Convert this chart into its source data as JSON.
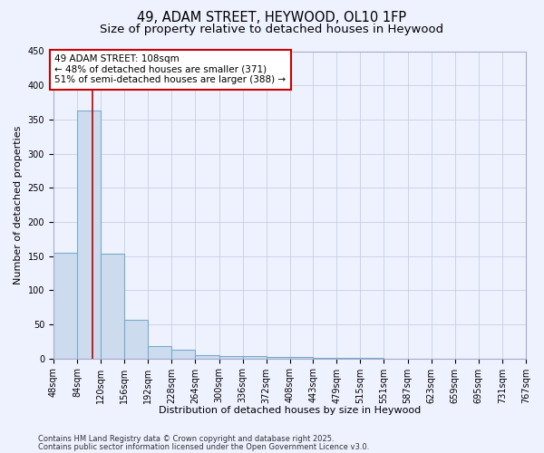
{
  "title": "49, ADAM STREET, HEYWOOD, OL10 1FP",
  "subtitle": "Size of property relative to detached houses in Heywood",
  "xlabel": "Distribution of detached houses by size in Heywood",
  "ylabel": "Number of detached properties",
  "bin_edges": [
    48,
    84,
    120,
    156,
    192,
    228,
    264,
    300,
    336,
    372,
    408,
    443,
    479,
    515,
    551,
    587,
    623,
    659,
    695,
    731,
    767
  ],
  "bar_heights": [
    155,
    363,
    153,
    57,
    18,
    13,
    5,
    4,
    3,
    2,
    2,
    1,
    1,
    1,
    0,
    0,
    0,
    0,
    0,
    0
  ],
  "bar_color": "#ccdcee",
  "bar_edge_color": "#7aaacc",
  "vline_x": 108,
  "vline_color": "#bb0000",
  "annotation_line1": "49 ADAM STREET: 108sqm",
  "annotation_line2": "← 48% of detached houses are smaller (371)",
  "annotation_line3": "51% of semi-detached houses are larger (388) →",
  "annotation_box_color": "#cc0000",
  "annotation_bg_color": "white",
  "ylim": [
    0,
    450
  ],
  "yticks": [
    0,
    50,
    100,
    150,
    200,
    250,
    300,
    350,
    400,
    450
  ],
  "background_color": "#eef2ff",
  "grid_color": "#c8cfe0",
  "footer_line1": "Contains HM Land Registry data © Crown copyright and database right 2025.",
  "footer_line2": "Contains public sector information licensed under the Open Government Licence v3.0.",
  "title_fontsize": 10.5,
  "subtitle_fontsize": 9.5,
  "axis_label_fontsize": 8,
  "tick_fontsize": 7,
  "annotation_fontsize": 7.5,
  "footer_fontsize": 6.0
}
